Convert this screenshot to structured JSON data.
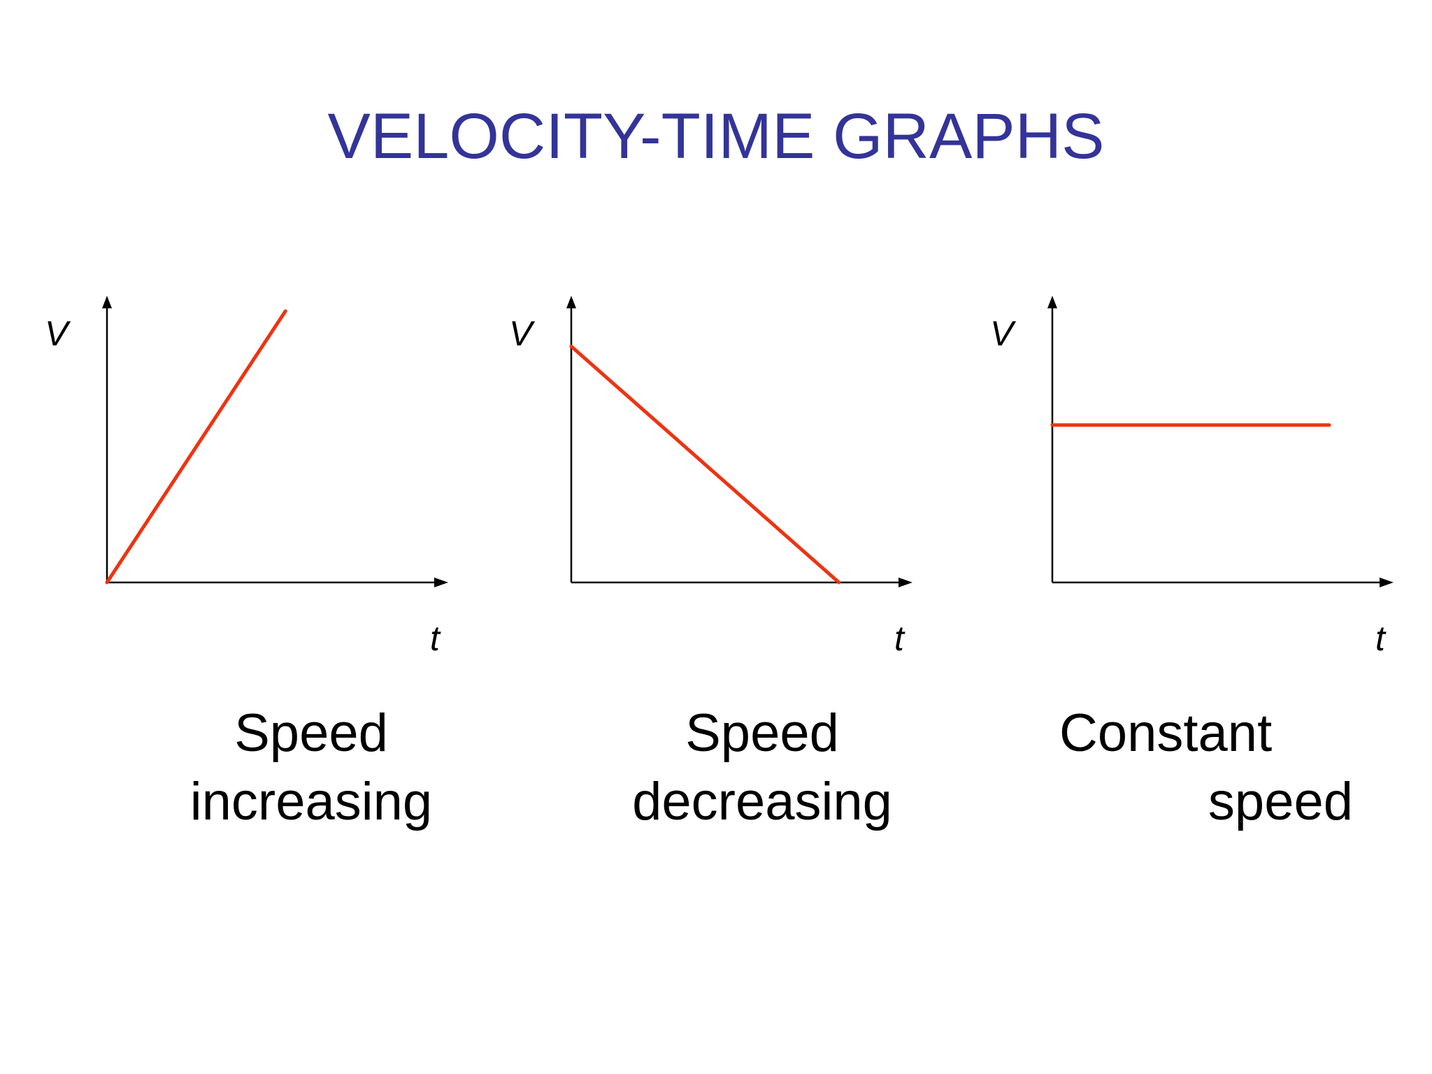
{
  "title": "VELOCITY-TIME GRAPHS",
  "colors": {
    "title": "#333399",
    "line": "#ee3311",
    "axis": "#000000"
  },
  "chart_data": [
    {
      "type": "line",
      "xlabel": "t",
      "ylabel": "V",
      "ylim": [
        0,
        1
      ],
      "xlim": [
        0,
        1
      ],
      "series": [
        {
          "x": [
            0,
            0.58
          ],
          "y": [
            0,
            1.0
          ]
        }
      ],
      "caption": [
        "Speed",
        "increasing"
      ]
    },
    {
      "type": "line",
      "xlabel": "t",
      "ylabel": "V",
      "ylim": [
        0,
        1
      ],
      "xlim": [
        0,
        1
      ],
      "series": [
        {
          "x": [
            0,
            0.87
          ],
          "y": [
            0.87,
            0
          ]
        }
      ],
      "caption": [
        "Speed",
        "decreasing"
      ]
    },
    {
      "type": "line",
      "xlabel": "t",
      "ylabel": "V",
      "ylim": [
        0,
        1
      ],
      "xlim": [
        0,
        1
      ],
      "series": [
        {
          "x": [
            0,
            0.9
          ],
          "y": [
            0.58,
            0.58
          ]
        }
      ],
      "caption": [
        "Constant",
        "speed"
      ]
    }
  ]
}
